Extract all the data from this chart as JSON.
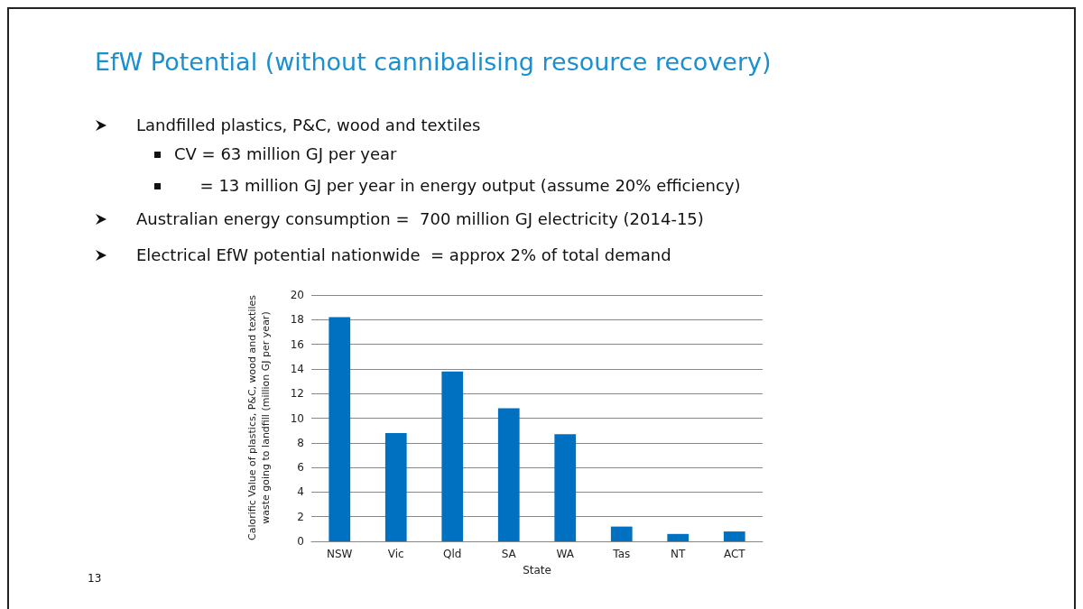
{
  "chart_data": {
    "type": "bar",
    "title": "EfW Potential (without cannibalising resource recovery)",
    "annotations": [
      "Landfilled plastics, P&C, wood and textiles",
      "CV = 63 million GJ per year",
      "     = 13 million GJ per year in energy output (assume 20% efficiency)",
      "Australian energy consumption =  700 million GJ electricity (2014-15)",
      "Electrical EfW potential nationwide  = approx 2% of total demand",
      "13"
    ],
    "categories": [
      "NSW",
      "Vic",
      "Qld",
      "SA",
      "WA",
      "Tas",
      "NT",
      "ACT"
    ],
    "values": [
      18.2,
      8.8,
      13.8,
      10.8,
      8.7,
      1.2,
      0.6,
      0.8
    ],
    "color": "#0070c0",
    "xlabel": "State",
    "ylabel": "Calorific Value of plastics, P&C, wood and textiles waste going to landfill  (million GJ per year)",
    "ylim": [
      0,
      20
    ],
    "yticks": [
      0,
      2,
      4,
      6,
      8,
      10,
      12,
      14,
      16,
      18,
      20
    ],
    "grid": "y"
  }
}
